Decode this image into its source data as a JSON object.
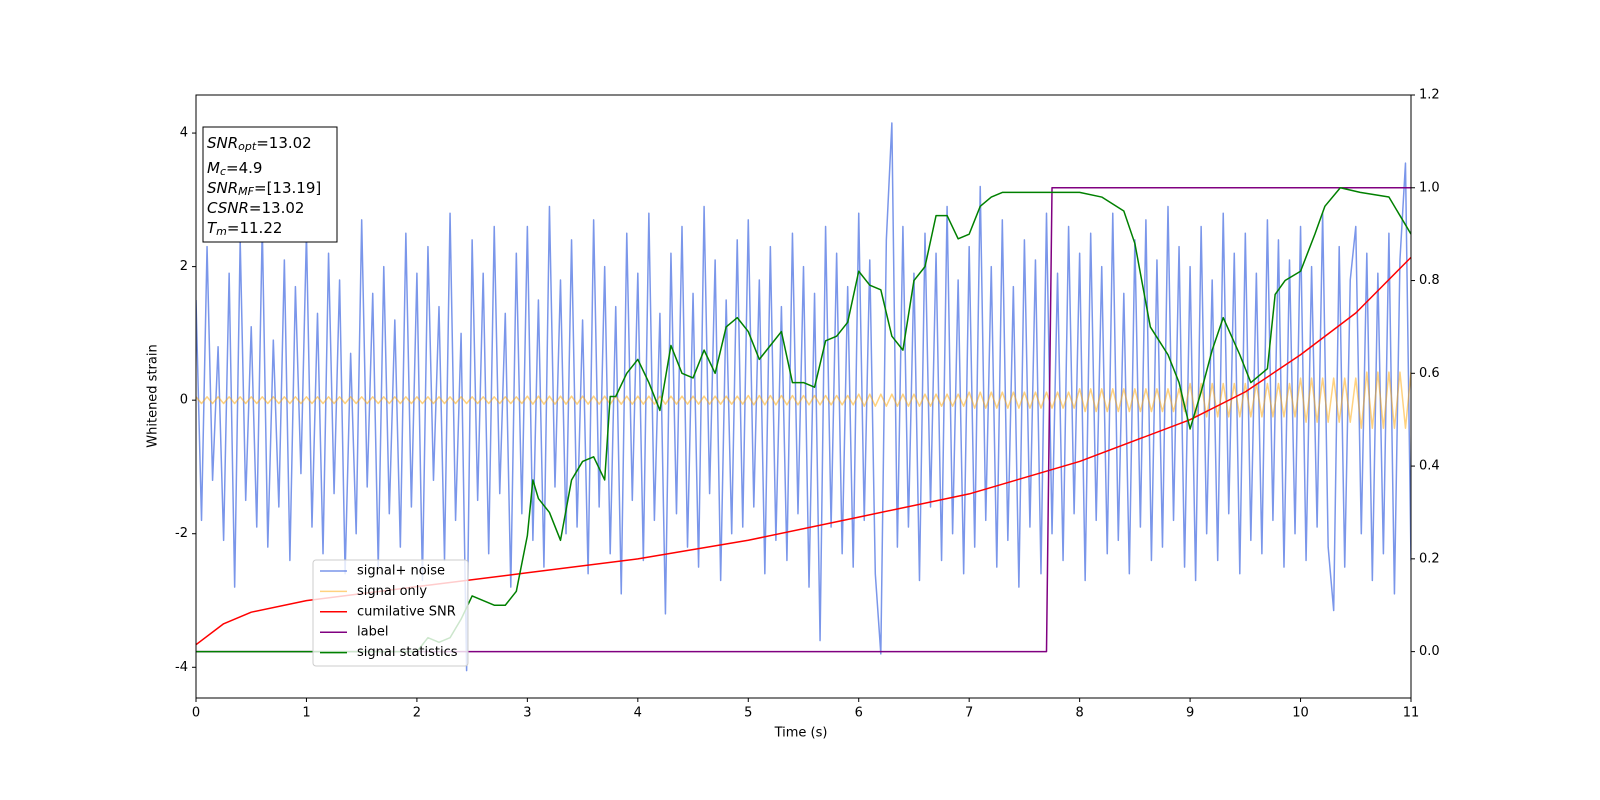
{
  "chart_data": {
    "type": "line",
    "xlabel": "Time (s)",
    "ylabel": "Whitened strain",
    "xlim": [
      0,
      11
    ],
    "ylim": [
      -4.46,
      4.57
    ],
    "y2lim": [
      -0.1,
      1.2
    ],
    "xticks": [
      0,
      1,
      2,
      3,
      4,
      5,
      6,
      7,
      8,
      9,
      10,
      11
    ],
    "yticks": [
      -4,
      -2,
      0,
      2,
      4
    ],
    "y2ticks": [
      {
        "value": 0,
        "label": "0.0"
      },
      0.2,
      0.4,
      0.6,
      0.8,
      {
        "value": 1,
        "label": "1.0"
      },
      1.2
    ],
    "legend": "lower left",
    "annotations": [
      {
        "symbol": "SNR",
        "subscript": "opt",
        "text": "=13.02"
      },
      {
        "symbol": "M",
        "subscript": "c",
        "text": "=4.9"
      },
      {
        "symbol": "SNR",
        "subscript": "MF",
        "text": "=[13.19]"
      },
      {
        "symbol": "CSNR",
        "text": "=13.02"
      },
      {
        "symbol": "T",
        "subscript": "m",
        "text": "=11.22"
      }
    ],
    "x": [
      0,
      0.05,
      0.1,
      0.15,
      0.2,
      0.25,
      0.3,
      0.35,
      0.4,
      0.45,
      0.5,
      0.55,
      0.6,
      0.65,
      0.7,
      0.75,
      0.8,
      0.85,
      0.9,
      0.95,
      1,
      1.05,
      1.1,
      1.15,
      1.2,
      1.25,
      1.3,
      1.35,
      1.4,
      1.45,
      1.5,
      1.55,
      1.6,
      1.65,
      1.7,
      1.75,
      1.8,
      1.85,
      1.9,
      1.95,
      2,
      2.05,
      2.1,
      2.15,
      2.2,
      2.25,
      2.3,
      2.35,
      2.4,
      2.45,
      2.5,
      2.55,
      2.6,
      2.65,
      2.7,
      2.75,
      2.8,
      2.85,
      2.9,
      2.95,
      3,
      3.05,
      3.1,
      3.15,
      3.2,
      3.25,
      3.3,
      3.35,
      3.4,
      3.45,
      3.5,
      3.55,
      3.6,
      3.65,
      3.7,
      3.75,
      3.8,
      3.85,
      3.9,
      3.95,
      4,
      4.05,
      4.1,
      4.15,
      4.2,
      4.25,
      4.3,
      4.35,
      4.4,
      4.45,
      4.5,
      4.55,
      4.6,
      4.65,
      4.7,
      4.75,
      4.8,
      4.85,
      4.9,
      4.95,
      5,
      5.05,
      5.1,
      5.15,
      5.2,
      5.25,
      5.3,
      5.35,
      5.4,
      5.45,
      5.5,
      5.55,
      5.6,
      5.65,
      5.7,
      5.75,
      5.8,
      5.85,
      5.9,
      5.95,
      6,
      6.05,
      6.1,
      6.15,
      6.2,
      6.25,
      6.3,
      6.35,
      6.4,
      6.45,
      6.5,
      6.55,
      6.6,
      6.65,
      6.7,
      6.75,
      6.8,
      6.85,
      6.9,
      6.95,
      7,
      7.05,
      7.1,
      7.15,
      7.2,
      7.25,
      7.3,
      7.35,
      7.4,
      7.45,
      7.5,
      7.55,
      7.6,
      7.65,
      7.7,
      7.75,
      7.8,
      7.85,
      7.9,
      7.95,
      8,
      8.05,
      8.1,
      8.15,
      8.2,
      8.25,
      8.3,
      8.35,
      8.4,
      8.45,
      8.5,
      8.55,
      8.6,
      8.65,
      8.7,
      8.75,
      8.8,
      8.85,
      8.9,
      8.95,
      9,
      9.05,
      9.1,
      9.15,
      9.2,
      9.25,
      9.3,
      9.35,
      9.4,
      9.45,
      9.5,
      9.55,
      9.6,
      9.65,
      9.7,
      9.75,
      9.8,
      9.85,
      9.9,
      9.95,
      10,
      10.05,
      10.1,
      10.15,
      10.2,
      10.25,
      10.3,
      10.35,
      10.4,
      10.45,
      10.5,
      10.55,
      10.6,
      10.65,
      10.7,
      10.75,
      10.8,
      10.85,
      10.9,
      10.95,
      11
    ],
    "series": [
      {
        "name": "signal+ noise",
        "color": "#4169e1",
        "opacity": 0.7,
        "values": [
          1.5,
          -1.8,
          2.3,
          -1.2,
          0.8,
          -2.1,
          1.9,
          -2.8,
          2.4,
          -1.5,
          1.1,
          -1.9,
          2.6,
          -2.2,
          0.9,
          -1.6,
          2.1,
          -2.4,
          1.7,
          -1.1,
          2.5,
          -1.9,
          1.3,
          -2.3,
          2.2,
          -1.4,
          1.8,
          -2.6,
          0.7,
          -2.0,
          2.7,
          -1.3,
          1.6,
          -2.5,
          2.0,
          -1.7,
          1.2,
          -2.2,
          2.5,
          -1.6,
          1.9,
          -2.7,
          2.3,
          -1.2,
          1.4,
          -2.4,
          2.8,
          -1.8,
          1.0,
          -4.05,
          2.4,
          -1.5,
          1.9,
          -2.3,
          2.6,
          -1.4,
          1.3,
          -2.8,
          2.2,
          -1.7,
          2.6,
          -2.1,
          1.5,
          -2.5,
          2.9,
          -1.3,
          1.8,
          -2.0,
          2.4,
          -1.9,
          1.2,
          -2.6,
          2.7,
          -1.6,
          2.0,
          -2.3,
          1.4,
          -2.9,
          2.5,
          -1.5,
          1.9,
          -2.4,
          2.8,
          -1.8,
          1.3,
          -3.2,
          2.2,
          -1.7,
          2.6,
          -2.2,
          1.6,
          -2.5,
          2.9,
          -1.4,
          2.1,
          -2.7,
          1.5,
          -2.0,
          2.4,
          -1.9,
          2.7,
          -1.6,
          1.8,
          -2.6,
          2.3,
          -2.1,
          1.4,
          -2.4,
          2.5,
          -1.7,
          2.0,
          -2.8,
          1.6,
          -3.6,
          2.6,
          -1.9,
          2.2,
          -2.3,
          1.7,
          -2.5,
          2.8,
          -1.8,
          2.1,
          -2.6,
          -3.8,
          2.4,
          4.15,
          -2.2,
          2.6,
          -1.9,
          1.9,
          -2.7,
          2.5,
          -1.6,
          2.2,
          -2.4,
          2.9,
          -2.0,
          1.8,
          -2.6,
          2.3,
          -2.2,
          3.2,
          -1.8,
          2.0,
          -2.5,
          2.7,
          -2.1,
          1.7,
          -2.8,
          2.4,
          -1.9,
          2.1,
          -2.6,
          2.8,
          -2.0,
          1.9,
          -2.4,
          2.6,
          -1.7,
          2.2,
          -2.7,
          2.5,
          -1.8,
          2.0,
          -2.3,
          2.8,
          -2.1,
          1.6,
          -2.6,
          2.4,
          -1.9,
          2.7,
          -2.4,
          2.1,
          -2.2,
          2.9,
          -1.8,
          2.3,
          -2.5,
          2.0,
          -2.7,
          2.6,
          -2.0,
          1.8,
          -2.4,
          2.8,
          -1.7,
          2.2,
          -2.6,
          2.5,
          -2.1,
          1.9,
          -2.3,
          2.7,
          -1.8,
          2.4,
          -2.5,
          2.1,
          -2.0,
          2.6,
          -2.4,
          2.0,
          -1.9,
          2.8,
          -2.2,
          -3.15,
          2.3,
          -2.5,
          1.8,
          2.6,
          -2.0,
          2.2,
          -2.7,
          1.9,
          -2.3,
          2.5,
          -2.9,
          2.1,
          3.55,
          -2.4
        ]
      },
      {
        "name": "signal only",
        "color": "#ffa500",
        "opacity": 0.5,
        "values": [
          0.05,
          -0.05,
          0.05,
          -0.05,
          0.05,
          -0.05,
          0.05,
          -0.05,
          0.05,
          -0.05,
          0.05,
          -0.05,
          0.05,
          -0.05,
          0.05,
          -0.05,
          0.05,
          -0.05,
          0.05,
          -0.05,
          0.05,
          -0.05,
          0.05,
          -0.05,
          0.05,
          -0.05,
          0.05,
          -0.05,
          0.05,
          -0.05,
          0.05,
          -0.05,
          0.05,
          -0.05,
          0.05,
          -0.05,
          0.05,
          -0.05,
          0.05,
          -0.05,
          0.05,
          -0.05,
          0.05,
          -0.05,
          0.05,
          -0.05,
          0.05,
          -0.05,
          0.05,
          -0.05,
          0.05,
          -0.05,
          0.05,
          -0.05,
          0.05,
          -0.05,
          0.05,
          -0.05,
          0.05,
          -0.05,
          0.06,
          -0.06,
          0.06,
          -0.06,
          0.06,
          -0.06,
          0.06,
          -0.06,
          0.06,
          -0.06,
          0.06,
          -0.06,
          0.06,
          -0.06,
          0.06,
          -0.06,
          0.06,
          -0.06,
          0.06,
          -0.06,
          0.06,
          -0.06,
          0.06,
          -0.06,
          0.06,
          -0.06,
          0.06,
          -0.06,
          0.06,
          -0.06,
          0.06,
          -0.06,
          0.06,
          -0.06,
          0.06,
          -0.06,
          0.06,
          -0.06,
          0.06,
          -0.06,
          0.07,
          -0.07,
          0.07,
          -0.07,
          0.07,
          -0.07,
          0.07,
          -0.07,
          0.07,
          -0.07,
          0.07,
          -0.07,
          0.07,
          -0.07,
          0.07,
          -0.07,
          0.07,
          -0.07,
          0.07,
          -0.07,
          0.09,
          -0.09,
          0.09,
          -0.09,
          0.09,
          -0.09,
          0.09,
          -0.09,
          0.09,
          -0.09,
          0.09,
          -0.09,
          0.09,
          -0.09,
          0.09,
          -0.09,
          0.09,
          -0.09,
          0.09,
          -0.09,
          0.12,
          -0.12,
          0.12,
          -0.12,
          0.12,
          -0.12,
          0.12,
          -0.12,
          0.12,
          -0.12,
          0.12,
          -0.12,
          0.12,
          -0.12,
          0.12,
          -0.12,
          0.12,
          -0.12,
          0.12,
          -0.12,
          0.17,
          -0.17,
          0.17,
          -0.17,
          0.17,
          -0.17,
          0.17,
          -0.17,
          0.17,
          -0.17,
          0.17,
          -0.17,
          0.17,
          -0.17,
          0.17,
          -0.17,
          0.17,
          -0.17,
          0.17,
          -0.17,
          0.25,
          -0.25,
          0.25,
          -0.25,
          0.25,
          -0.25,
          0.25,
          -0.25,
          0.25,
          -0.25,
          0.25,
          -0.25,
          0.25,
          -0.25,
          0.25,
          -0.25,
          0.25,
          -0.25,
          0.25,
          -0.25,
          0.33,
          -0.33,
          0.33,
          -0.33,
          0.33,
          -0.33,
          0.33,
          -0.33,
          0.33,
          -0.33,
          0.33,
          -0.42,
          0.42,
          -0.42,
          0.42,
          -0.42,
          0.42,
          -0.42,
          0.42,
          -0.42,
          0.42
        ]
      },
      {
        "name": "cumilative SNR",
        "color": "#ff0000",
        "axis": "y2",
        "x": [
          0,
          0.25,
          0.5,
          1,
          1.5,
          2,
          3,
          4,
          5,
          6,
          7,
          8,
          9,
          9.5,
          10,
          10.5,
          11
        ],
        "values": [
          0.015,
          0.06,
          0.085,
          0.11,
          0.125,
          0.14,
          0.17,
          0.2,
          0.24,
          0.29,
          0.34,
          0.41,
          0.5,
          0.56,
          0.64,
          0.73,
          0.85
        ]
      },
      {
        "name": "label",
        "color": "#800080",
        "axis": "y2",
        "x": [
          0,
          7.7,
          7.75,
          11
        ],
        "values": [
          0,
          0,
          1,
          1
        ]
      },
      {
        "name": "signal statistics",
        "color": "#008000",
        "axis": "y2",
        "x": [
          0,
          2.0,
          2.1,
          2.2,
          2.3,
          2.4,
          2.5,
          2.6,
          2.7,
          2.8,
          2.9,
          3.0,
          3.05,
          3.1,
          3.2,
          3.3,
          3.4,
          3.5,
          3.6,
          3.7,
          3.75,
          3.8,
          3.9,
          4.0,
          4.1,
          4.2,
          4.3,
          4.4,
          4.5,
          4.6,
          4.7,
          4.8,
          4.9,
          5.0,
          5.1,
          5.2,
          5.3,
          5.4,
          5.5,
          5.6,
          5.7,
          5.8,
          5.9,
          6.0,
          6.1,
          6.2,
          6.3,
          6.4,
          6.5,
          6.6,
          6.7,
          6.8,
          6.9,
          7.0,
          7.1,
          7.2,
          7.3,
          7.5,
          7.7,
          8.0,
          8.2,
          8.4,
          8.5,
          8.64,
          8.8,
          8.9,
          9.0,
          9.1,
          9.2,
          9.3,
          9.45,
          9.55,
          9.7,
          9.77,
          9.86,
          10.0,
          10.13,
          10.22,
          10.36,
          10.54,
          10.8,
          11.0
        ],
        "values": [
          0,
          0,
          0.03,
          0.02,
          0.03,
          0.07,
          0.12,
          0.11,
          0.1,
          0.1,
          0.13,
          0.25,
          0.37,
          0.33,
          0.3,
          0.24,
          0.37,
          0.41,
          0.42,
          0.37,
          0.55,
          0.55,
          0.6,
          0.63,
          0.58,
          0.52,
          0.66,
          0.6,
          0.59,
          0.65,
          0.6,
          0.7,
          0.72,
          0.69,
          0.63,
          0.66,
          0.69,
          0.58,
          0.58,
          0.57,
          0.67,
          0.68,
          0.71,
          0.82,
          0.79,
          0.78,
          0.68,
          0.65,
          0.8,
          0.83,
          0.94,
          0.94,
          0.89,
          0.9,
          0.96,
          0.98,
          0.99,
          0.99,
          0.99,
          0.99,
          0.98,
          0.95,
          0.88,
          0.7,
          0.64,
          0.58,
          0.48,
          0.56,
          0.65,
          0.72,
          0.64,
          0.58,
          0.61,
          0.77,
          0.8,
          0.82,
          0.9,
          0.96,
          1.0,
          0.99,
          0.98,
          0.9
        ]
      }
    ]
  }
}
